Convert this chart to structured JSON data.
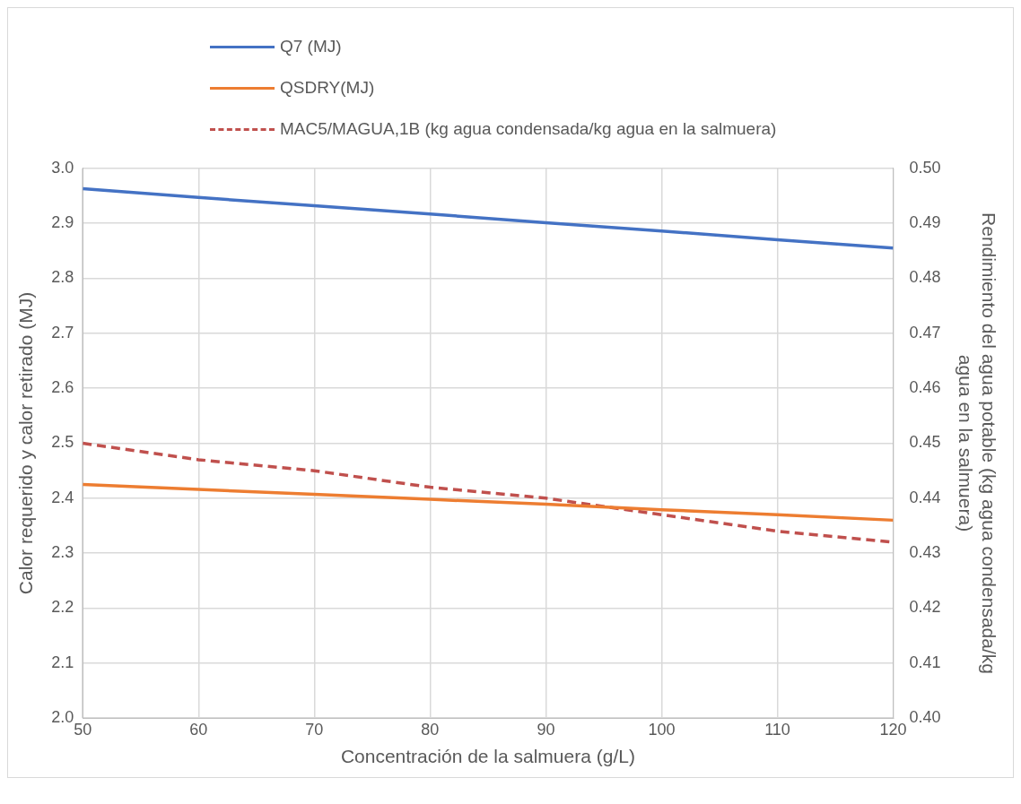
{
  "chart_data": {
    "type": "line",
    "xlabel": "Concentración de la salmuera (g/L)",
    "ylabel": "Calor requerido y calor retirado (MJ)",
    "y2label": "Rendimiento del agua potable (kg agua condensada/kg agua en la salmuera)",
    "x": [
      50,
      60,
      70,
      80,
      90,
      100,
      110,
      120
    ],
    "xlim": [
      50,
      120
    ],
    "xticks": [
      50,
      60,
      70,
      80,
      90,
      100,
      110,
      120
    ],
    "ylim": [
      2.0,
      3.0
    ],
    "yticks": [
      {
        "value": 2.0,
        "label": "2.0"
      },
      2.1,
      2.2,
      2.3,
      2.4,
      2.5,
      2.6,
      2.7,
      2.8,
      2.9,
      {
        "value": 3.0,
        "label": "3.0"
      }
    ],
    "y2lim": [
      0.4,
      0.5
    ],
    "y2ticks": [
      {
        "value": 0.4,
        "label": "0.40"
      },
      0.41,
      0.42,
      0.43,
      0.44,
      0.45,
      0.46,
      0.47,
      0.48,
      0.49,
      {
        "value": 0.5,
        "label": "0.50"
      }
    ],
    "grid": true,
    "legend": "top",
    "marker": "none",
    "series": [
      {
        "name": "Q7 (MJ)",
        "color": "#4472c4",
        "line_style": "solid",
        "values": [
          2.963,
          2.947,
          2.932,
          2.917,
          2.901,
          2.886,
          2.87,
          2.855
        ]
      },
      {
        "name": "QSDRY(MJ)",
        "color": "#ed7d31",
        "line_style": "solid",
        "values": [
          2.425,
          2.416,
          2.407,
          2.398,
          2.389,
          2.379,
          2.37,
          2.36
        ]
      },
      {
        "name": "MAC5/MAGUA,1B (kg agua condensada/kg agua en la salmuera)",
        "color": "#c0504d",
        "line_style": "dashed",
        "axis": "y2",
        "values": [
          0.45,
          0.447,
          0.445,
          0.442,
          0.44,
          0.437,
          0.434,
          0.432
        ]
      }
    ]
  }
}
